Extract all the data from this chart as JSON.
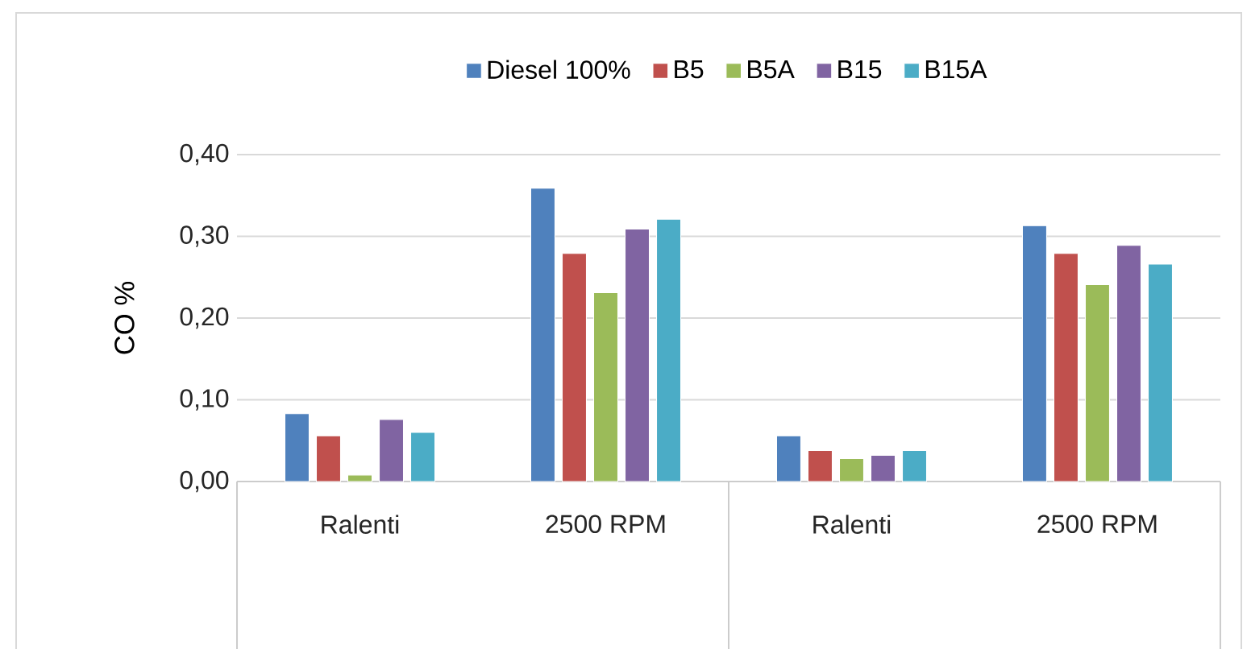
{
  "chart_data": {
    "type": "bar",
    "categories": [
      "Ralenti",
      "2500 RPM",
      "Ralenti",
      "2500 RPM"
    ],
    "ylabel": "CO %",
    "ylim": [
      0,
      0.4
    ],
    "yticks": [
      {
        "value": 0,
        "label": "0,00"
      },
      {
        "value": 0.1,
        "label": "0,10"
      },
      {
        "value": 0.2,
        "label": "0,20"
      },
      {
        "value": 0.3,
        "label": "0,30"
      },
      {
        "value": 0.4,
        "label": "0,40"
      }
    ],
    "grid": "y",
    "legend": "top",
    "series": [
      {
        "name": "Diesel 100%",
        "color": "#4f81bd",
        "values": [
          0.083,
          0.359,
          0.056,
          0.313
        ]
      },
      {
        "name": "B5",
        "color": "#c0504d",
        "values": [
          0.056,
          0.279,
          0.038,
          0.279
        ]
      },
      {
        "name": "B5A",
        "color": "#9bbb59",
        "values": [
          0.008,
          0.231,
          0.028,
          0.241
        ]
      },
      {
        "name": "B15",
        "color": "#8064a2",
        "values": [
          0.076,
          0.309,
          0.032,
          0.289
        ]
      },
      {
        "name": "B15A",
        "color": "#4bacc6",
        "values": [
          0.06,
          0.321,
          0.038,
          0.266
        ]
      }
    ]
  }
}
